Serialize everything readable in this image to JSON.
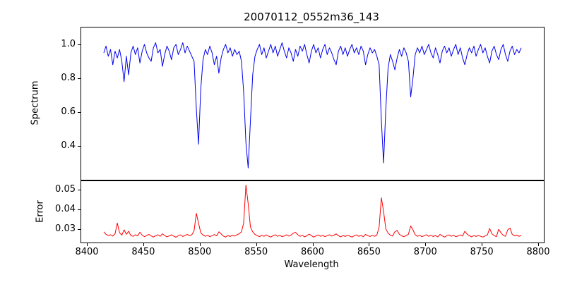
{
  "chart_data": {
    "type": "line",
    "title": "20070112_0552m36_143",
    "xlabel": "Wavelength",
    "xlim": [
      8395,
      8805
    ],
    "xticks": [
      8400,
      8450,
      8500,
      8550,
      8600,
      8650,
      8700,
      8750,
      8800
    ],
    "xtick_labels": [
      "8400",
      "8450",
      "8500",
      "8550",
      "8600",
      "8650",
      "8700",
      "8750",
      "8800"
    ],
    "grid": false,
    "legend": "none",
    "panels": [
      {
        "name": "spectrum",
        "ylabel": "Spectrum",
        "ylim": [
          0.2,
          1.1
        ],
        "yticks": [
          0.4,
          0.6,
          0.8,
          1.0
        ],
        "ytick_labels": [
          "0.4",
          "0.6",
          "0.8",
          "1.0"
        ],
        "absorption_features": [
          {
            "wavelength": 8498,
            "depth": 0.41
          },
          {
            "wavelength": 8542,
            "depth": 0.27
          },
          {
            "wavelength": 8662,
            "depth": 0.3
          },
          {
            "wavelength": 8688,
            "depth": 0.69
          }
        ],
        "series": {
          "name": "spectrum-flux",
          "color": "#0000ee",
          "x_start": 8415,
          "x_step": 2,
          "values": [
            0.95,
            0.99,
            0.93,
            0.97,
            0.88,
            0.96,
            0.92,
            0.97,
            0.9,
            0.78,
            0.93,
            0.82,
            0.95,
            0.99,
            0.94,
            0.98,
            0.89,
            0.96,
            1.0,
            0.95,
            0.92,
            0.9,
            0.98,
            1.01,
            0.95,
            0.97,
            0.87,
            0.94,
            0.99,
            0.96,
            0.91,
            0.98,
            1.0,
            0.94,
            0.97,
            1.01,
            0.95,
            0.99,
            0.96,
            0.93,
            0.9,
            0.62,
            0.41,
            0.74,
            0.91,
            0.97,
            0.94,
            0.99,
            0.95,
            0.88,
            0.93,
            0.83,
            0.92,
            0.97,
            1.0,
            0.95,
            0.98,
            0.93,
            0.97,
            0.94,
            0.96,
            0.9,
            0.72,
            0.42,
            0.27,
            0.55,
            0.82,
            0.93,
            0.97,
            1.0,
            0.94,
            0.98,
            0.92,
            0.96,
            1.0,
            0.95,
            0.99,
            0.93,
            0.97,
            1.01,
            0.96,
            0.92,
            0.98,
            0.95,
            0.9,
            0.97,
            0.93,
            0.99,
            0.96,
            1.0,
            0.94,
            0.89,
            0.96,
            1.0,
            0.95,
            0.98,
            0.92,
            0.97,
            1.0,
            0.94,
            0.98,
            0.95,
            0.91,
            0.88,
            0.96,
            0.99,
            0.94,
            0.98,
            0.93,
            0.97,
            1.0,
            0.95,
            0.98,
            0.94,
            0.99,
            0.96,
            0.88,
            0.94,
            0.98,
            0.95,
            0.97,
            0.93,
            0.88,
            0.55,
            0.3,
            0.62,
            0.86,
            0.94,
            0.9,
            0.85,
            0.92,
            0.97,
            0.93,
            0.98,
            0.95,
            0.9,
            0.69,
            0.8,
            0.94,
            0.98,
            0.95,
            0.99,
            0.94,
            0.97,
            1.0,
            0.95,
            0.92,
            0.98,
            0.94,
            0.89,
            0.96,
            0.99,
            0.95,
            0.98,
            0.93,
            0.97,
            1.0,
            0.94,
            0.98,
            0.92,
            0.88,
            0.94,
            0.98,
            0.95,
            0.99,
            0.93,
            0.97,
            1.0,
            0.95,
            0.98,
            0.93,
            0.89,
            0.96,
            0.99,
            0.94,
            0.91,
            0.97,
            1.0,
            0.94,
            0.9,
            0.96,
            0.99,
            0.94,
            0.97,
            0.95,
            0.98
          ]
        }
      },
      {
        "name": "error",
        "ylabel": "Error",
        "ylim": [
          0.023,
          0.0545
        ],
        "yticks": [
          0.03,
          0.04,
          0.05
        ],
        "ytick_labels": [
          "0.03",
          "0.04",
          "0.05"
        ],
        "spike_features": [
          {
            "wavelength": 8427,
            "peak": 0.033
          },
          {
            "wavelength": 8498,
            "peak": 0.038
          },
          {
            "wavelength": 8542,
            "peak": 0.0525
          },
          {
            "wavelength": 8662,
            "peak": 0.046
          },
          {
            "wavelength": 8688,
            "peak": 0.0315
          }
        ],
        "series": {
          "name": "error-level",
          "color": "#ff0000",
          "x_start": 8415,
          "x_step": 2,
          "values": [
            0.0285,
            0.0272,
            0.0266,
            0.027,
            0.0263,
            0.0275,
            0.033,
            0.028,
            0.0268,
            0.0295,
            0.0272,
            0.0288,
            0.0266,
            0.0262,
            0.027,
            0.0264,
            0.0283,
            0.0268,
            0.026,
            0.0266,
            0.0272,
            0.0264,
            0.0258,
            0.0265,
            0.027,
            0.0262,
            0.0275,
            0.0266,
            0.0259,
            0.0264,
            0.027,
            0.0263,
            0.0257,
            0.0265,
            0.0269,
            0.0261,
            0.0266,
            0.0272,
            0.0264,
            0.027,
            0.029,
            0.038,
            0.033,
            0.028,
            0.0268,
            0.0262,
            0.0267,
            0.026,
            0.0265,
            0.0271,
            0.0264,
            0.0285,
            0.0274,
            0.0263,
            0.0258,
            0.0266,
            0.0261,
            0.0268,
            0.0263,
            0.027,
            0.0275,
            0.0285,
            0.033,
            0.0525,
            0.043,
            0.031,
            0.0285,
            0.0272,
            0.0265,
            0.026,
            0.0267,
            0.0262,
            0.0269,
            0.0263,
            0.0258,
            0.0265,
            0.027,
            0.0262,
            0.0267,
            0.026,
            0.0264,
            0.027,
            0.0263,
            0.0268,
            0.0278,
            0.0282,
            0.027,
            0.0262,
            0.0267,
            0.0259,
            0.0265,
            0.0273,
            0.0266,
            0.0258,
            0.0264,
            0.0269,
            0.0262,
            0.0267,
            0.026,
            0.0265,
            0.027,
            0.0263,
            0.0268,
            0.0274,
            0.0265,
            0.0259,
            0.0266,
            0.0261,
            0.0267,
            0.0263,
            0.0258,
            0.0265,
            0.0269,
            0.0262,
            0.0266,
            0.026,
            0.0272,
            0.0265,
            0.0261,
            0.0267,
            0.0262,
            0.0268,
            0.031,
            0.046,
            0.039,
            0.03,
            0.0278,
            0.0268,
            0.0263,
            0.0285,
            0.0292,
            0.0272,
            0.0264,
            0.026,
            0.0266,
            0.0272,
            0.0315,
            0.0295,
            0.027,
            0.0262,
            0.0267,
            0.026,
            0.0265,
            0.027,
            0.0262,
            0.0267,
            0.0261,
            0.0266,
            0.0259,
            0.0272,
            0.0264,
            0.0258,
            0.0265,
            0.0269,
            0.0262,
            0.0267,
            0.026,
            0.0264,
            0.0269,
            0.0263,
            0.0288,
            0.0273,
            0.0265,
            0.0259,
            0.0266,
            0.0261,
            0.0267,
            0.0262,
            0.0258,
            0.0264,
            0.0269,
            0.0302,
            0.0275,
            0.0266,
            0.026,
            0.0298,
            0.028,
            0.0267,
            0.0262,
            0.0295,
            0.0304,
            0.0272,
            0.0264,
            0.0268,
            0.0262,
            0.0266
          ]
        }
      }
    ]
  }
}
